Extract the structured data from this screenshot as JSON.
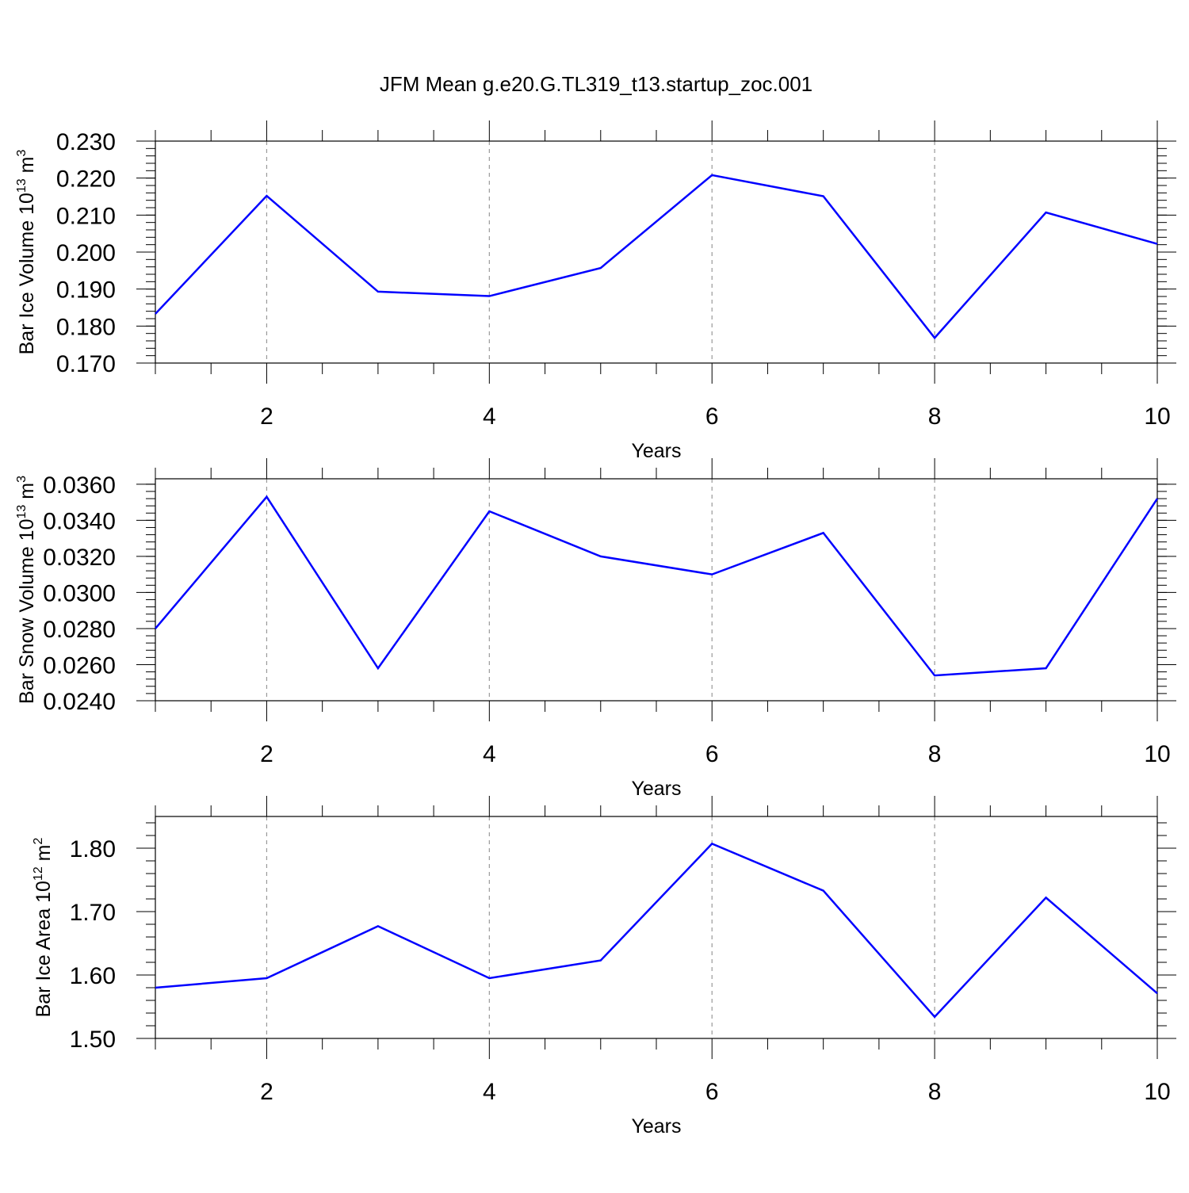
{
  "title": "JFM Mean g.e20.G.TL319_t13.startup_zoc.001",
  "colors": {
    "line": "#0000ff",
    "axis": "#000000",
    "grid": "#999999"
  },
  "chart_data": [
    {
      "type": "line",
      "title": "",
      "xlabel": "Years",
      "ylabel": {
        "main": "Bar Ice Volume 10",
        "sup_exp": "13",
        "unit": " m",
        "sup_unit": "3"
      },
      "x": [
        1,
        2,
        3,
        4,
        5,
        6,
        7,
        8,
        9,
        10
      ],
      "xlim": [
        1,
        10
      ],
      "xticks": [
        2,
        4,
        6,
        8,
        10
      ],
      "xtick_labels": [
        "2",
        "4",
        "6",
        "8",
        "10"
      ],
      "ylim": [
        0.17,
        0.23
      ],
      "yticks": [
        0.17,
        0.18,
        0.19,
        0.2,
        0.21,
        0.22,
        0.23
      ],
      "ytick_labels": [
        "0.170",
        "0.180",
        "0.190",
        "0.200",
        "0.210",
        "0.220",
        "0.230"
      ],
      "grid": "vertical dashed at major x ticks",
      "series": [
        {
          "values": [
            0.1833,
            0.2152,
            0.1893,
            0.1881,
            0.1957,
            0.2208,
            0.2151,
            0.1768,
            0.2107,
            0.2022
          ]
        }
      ]
    },
    {
      "type": "line",
      "title": "",
      "xlabel": "Years",
      "ylabel": {
        "main": "Bar Snow Volume 10",
        "sup_exp": "13",
        "unit": " m",
        "sup_unit": "3"
      },
      "x": [
        1,
        2,
        3,
        4,
        5,
        6,
        7,
        8,
        9,
        10
      ],
      "xlim": [
        1,
        10
      ],
      "xticks": [
        2,
        4,
        6,
        8,
        10
      ],
      "xtick_labels": [
        "2",
        "4",
        "6",
        "8",
        "10"
      ],
      "ylim": [
        0.024,
        0.0363
      ],
      "yticks": [
        0.024,
        0.026,
        0.028,
        0.03,
        0.032,
        0.034,
        0.036
      ],
      "ytick_labels": [
        "0.0240",
        "0.0260",
        "0.0280",
        "0.0300",
        "0.0320",
        "0.0340",
        "0.0360"
      ],
      "grid": "vertical dashed at major x ticks",
      "series": [
        {
          "values": [
            0.028,
            0.0353,
            0.0258,
            0.0345,
            0.032,
            0.031,
            0.0333,
            0.0254,
            0.0258,
            0.0352
          ]
        }
      ]
    },
    {
      "type": "line",
      "title": "",
      "xlabel": "Years",
      "ylabel": {
        "main": "Bar Ice Area 10",
        "sup_exp": "12",
        "unit": " m",
        "sup_unit": "2"
      },
      "x": [
        1,
        2,
        3,
        4,
        5,
        6,
        7,
        8,
        9,
        10
      ],
      "xlim": [
        1,
        10
      ],
      "xticks": [
        2,
        4,
        6,
        8,
        10
      ],
      "xtick_labels": [
        "2",
        "4",
        "6",
        "8",
        "10"
      ],
      "ylim": [
        1.5,
        1.85
      ],
      "yticks": [
        1.5,
        1.6,
        1.7,
        1.8
      ],
      "ytick_labels": [
        "1.50",
        "1.60",
        "1.70",
        "1.80"
      ],
      "grid": "vertical dashed at major x ticks",
      "series": [
        {
          "values": [
            1.58,
            1.595,
            1.677,
            1.595,
            1.623,
            1.807,
            1.733,
            1.534,
            1.722,
            1.571
          ]
        }
      ]
    }
  ]
}
